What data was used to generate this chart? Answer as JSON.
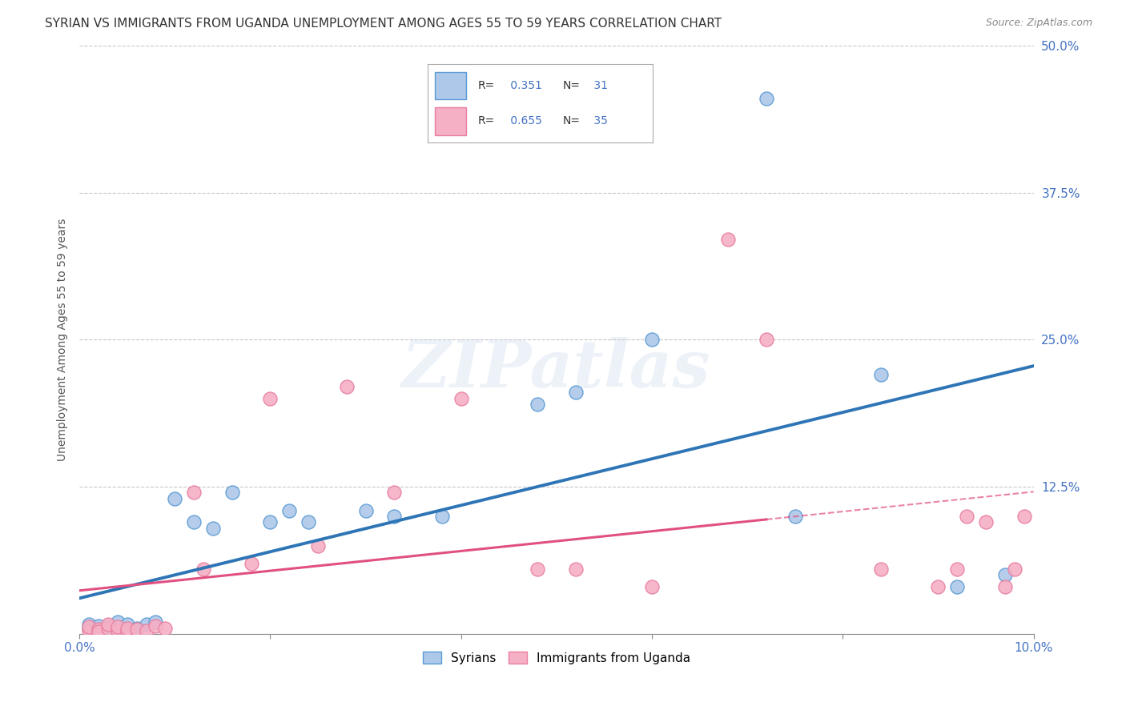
{
  "title": "SYRIAN VS IMMIGRANTS FROM UGANDA UNEMPLOYMENT AMONG AGES 55 TO 59 YEARS CORRELATION CHART",
  "source": "Source: ZipAtlas.com",
  "ylabel": "Unemployment Among Ages 55 to 59 years",
  "xlim": [
    0.0,
    0.1
  ],
  "ylim": [
    0.0,
    0.5
  ],
  "xticks": [
    0.0,
    0.02,
    0.04,
    0.06,
    0.08,
    0.1
  ],
  "yticks": [
    0.0,
    0.125,
    0.25,
    0.375,
    0.5
  ],
  "syrians_x": [
    0.001,
    0.001,
    0.002,
    0.002,
    0.003,
    0.003,
    0.004,
    0.004,
    0.005,
    0.005,
    0.006,
    0.007,
    0.008,
    0.01,
    0.012,
    0.014,
    0.016,
    0.02,
    0.022,
    0.024,
    0.03,
    0.033,
    0.038,
    0.048,
    0.052,
    0.06,
    0.072,
    0.075,
    0.084,
    0.092,
    0.097
  ],
  "syrians_y": [
    0.005,
    0.008,
    0.004,
    0.007,
    0.003,
    0.006,
    0.005,
    0.01,
    0.004,
    0.008,
    0.005,
    0.008,
    0.01,
    0.115,
    0.095,
    0.09,
    0.12,
    0.095,
    0.105,
    0.095,
    0.105,
    0.1,
    0.1,
    0.195,
    0.205,
    0.25,
    0.455,
    0.1,
    0.22,
    0.04,
    0.05
  ],
  "uganda_x": [
    0.001,
    0.001,
    0.002,
    0.002,
    0.003,
    0.003,
    0.004,
    0.004,
    0.005,
    0.005,
    0.006,
    0.007,
    0.008,
    0.009,
    0.012,
    0.013,
    0.018,
    0.02,
    0.025,
    0.028,
    0.033,
    0.04,
    0.048,
    0.052,
    0.06,
    0.068,
    0.072,
    0.084,
    0.09,
    0.092,
    0.093,
    0.095,
    0.097,
    0.098,
    0.099
  ],
  "uganda_y": [
    0.003,
    0.006,
    0.004,
    0.002,
    0.005,
    0.008,
    0.003,
    0.006,
    0.002,
    0.005,
    0.004,
    0.003,
    0.007,
    0.005,
    0.12,
    0.055,
    0.06,
    0.2,
    0.075,
    0.21,
    0.12,
    0.2,
    0.055,
    0.055,
    0.04,
    0.335,
    0.25,
    0.055,
    0.04,
    0.055,
    0.1,
    0.095,
    0.04,
    0.055,
    0.1
  ],
  "syrian_color": "#adc8e8",
  "uganda_color": "#f5b0c5",
  "syrian_edge_color": "#5b9bd5",
  "uganda_edge_color": "#e87fa0",
  "trend_line_color_syrian": "#2e75b6",
  "trend_line_color_uganda": "#e05080",
  "R_syrian": 0.351,
  "N_syrian": 31,
  "R_uganda": 0.655,
  "N_uganda": 35,
  "watermark": "ZIPatlas",
  "background_color": "#ffffff",
  "grid_color": "#c8c8c8",
  "title_fontsize": 11,
  "axis_label_fontsize": 10,
  "tick_fontsize": 11,
  "legend_fontsize": 11
}
